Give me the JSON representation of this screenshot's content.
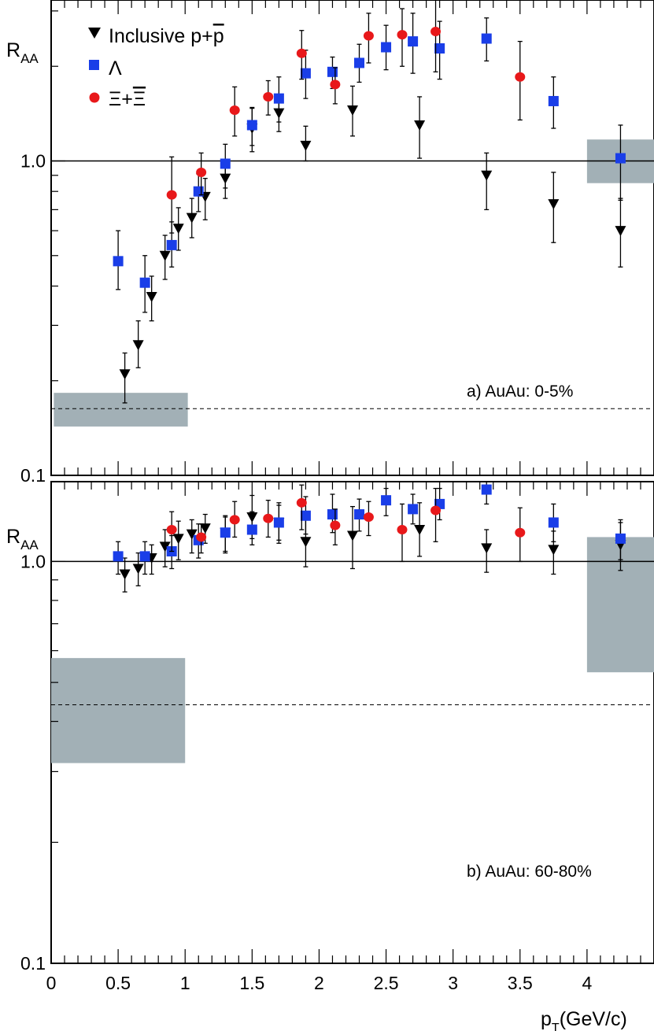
{
  "chart_data": {
    "type": "scatter",
    "xlabel_p": "p",
    "xlabel_sub": "T",
    "xlabel_rest": "(GeV/c)",
    "xlim": [
      0,
      4.5
    ],
    "xticks": [
      "0",
      "0.5",
      "1",
      "1.5",
      "2",
      "2.5",
      "3",
      "3.5",
      "4"
    ],
    "ylabel_main": "R",
    "ylabel_sub": "AA",
    "yscale": "log",
    "colors": {
      "inclusive": "#000000",
      "lambda": "#1a3ee8",
      "xi": "#e8181a",
      "band": "#a2b0b6"
    },
    "legend": [
      {
        "label": "Inclusive p+",
        "label_bar": "p",
        "marker": "triangle-down",
        "color": "#000000"
      },
      {
        "label": "Λ",
        "marker": "square",
        "color": "#1a3ee8"
      },
      {
        "label": "Ξ+",
        "label_bar": "Ξ",
        "marker": "circle",
        "color": "#e8181a"
      }
    ],
    "panels": [
      {
        "label": "a) AuAu: 0-5%",
        "ylim": [
          0.1,
          3.25
        ],
        "yticks": [
          "0.1",
          "1.0"
        ],
        "reference_line": 1.0,
        "dashed_line": 0.163,
        "band_low": {
          "x": [
            0.02,
            1.02
          ],
          "y": [
            0.143,
            0.183
          ]
        },
        "band_high": {
          "x": [
            4.0,
            4.5
          ],
          "y": [
            0.85,
            1.17
          ]
        },
        "series": [
          {
            "marker": "triangle-down",
            "points": [
              {
                "x": 0.55,
                "y": 0.21,
                "lo": 0.17,
                "hi": 0.245
              },
              {
                "x": 0.65,
                "y": 0.26,
                "lo": 0.22,
                "hi": 0.31
              },
              {
                "x": 0.75,
                "y": 0.37,
                "lo": 0.31,
                "hi": 0.43
              },
              {
                "x": 0.85,
                "y": 0.5,
                "lo": 0.42,
                "hi": 0.58
              },
              {
                "x": 0.95,
                "y": 0.61,
                "lo": 0.52,
                "hi": 0.71
              },
              {
                "x": 1.05,
                "y": 0.66,
                "lo": 0.57,
                "hi": 0.76
              },
              {
                "x": 1.15,
                "y": 0.77,
                "lo": 0.65,
                "hi": 0.88
              },
              {
                "x": 1.3,
                "y": 0.88,
                "lo": 0.76,
                "hi": 1.0
              },
              {
                "x": 1.5,
                "y": 1.27,
                "lo": 1.07,
                "hi": 1.47
              },
              {
                "x": 1.7,
                "y": 1.42,
                "lo": 1.24,
                "hi": 1.6
              },
              {
                "x": 1.9,
                "y": 1.12,
                "lo": 1.0,
                "hi": 1.29
              },
              {
                "x": 2.25,
                "y": 1.45,
                "lo": 1.2,
                "hi": 1.73
              },
              {
                "x": 2.75,
                "y": 1.3,
                "lo": 1.02,
                "hi": 1.6
              },
              {
                "x": 3.25,
                "y": 0.9,
                "lo": 0.7,
                "hi": 1.06
              },
              {
                "x": 3.75,
                "y": 0.73,
                "lo": 0.55,
                "hi": 0.92
              },
              {
                "x": 4.25,
                "y": 0.6,
                "lo": 0.46,
                "hi": 0.76
              }
            ]
          },
          {
            "marker": "square",
            "points": [
              {
                "x": 0.5,
                "y": 0.48,
                "lo": 0.39,
                "hi": 0.6
              },
              {
                "x": 0.7,
                "y": 0.41,
                "lo": 0.33,
                "hi": 0.5
              },
              {
                "x": 0.9,
                "y": 0.54,
                "lo": 0.46,
                "hi": 0.64
              },
              {
                "x": 1.1,
                "y": 0.8,
                "lo": 0.69,
                "hi": 0.91
              },
              {
                "x": 1.3,
                "y": 0.98,
                "lo": 0.82,
                "hi": 1.13
              },
              {
                "x": 1.5,
                "y": 1.3,
                "lo": 1.12,
                "hi": 1.48
              },
              {
                "x": 1.7,
                "y": 1.58,
                "lo": 1.33,
                "hi": 1.85
              },
              {
                "x": 1.9,
                "y": 1.9,
                "lo": 1.58,
                "hi": 2.25
              },
              {
                "x": 2.1,
                "y": 1.92,
                "lo": 1.7,
                "hi": 2.14
              },
              {
                "x": 2.3,
                "y": 2.05,
                "lo": 1.78,
                "hi": 2.35
              },
              {
                "x": 2.5,
                "y": 2.3,
                "lo": 1.95,
                "hi": 2.7
              },
              {
                "x": 2.7,
                "y": 2.4,
                "lo": 1.9,
                "hi": 2.95
              },
              {
                "x": 2.9,
                "y": 2.28,
                "lo": 1.82,
                "hi": 2.78
              },
              {
                "x": 3.25,
                "y": 2.45,
                "lo": 2.08,
                "hi": 2.85
              },
              {
                "x": 3.75,
                "y": 1.55,
                "lo": 1.27,
                "hi": 1.85
              },
              {
                "x": 4.25,
                "y": 1.02,
                "lo": 0.75,
                "hi": 1.3
              }
            ]
          },
          {
            "marker": "circle",
            "points": [
              {
                "x": 0.9,
                "y": 0.78,
                "lo": 0.59,
                "hi": 1.03
              },
              {
                "x": 1.12,
                "y": 0.92,
                "lo": 0.78,
                "hi": 1.06
              },
              {
                "x": 1.37,
                "y": 1.45,
                "lo": 1.2,
                "hi": 1.72
              },
              {
                "x": 1.62,
                "y": 1.6,
                "lo": 1.4,
                "hi": 1.8
              },
              {
                "x": 1.87,
                "y": 2.2,
                "lo": 1.82,
                "hi": 2.6
              },
              {
                "x": 2.12,
                "y": 1.75,
                "lo": 1.52,
                "hi": 1.98
              },
              {
                "x": 2.37,
                "y": 2.5,
                "lo": 2.05,
                "hi": 2.95
              },
              {
                "x": 2.62,
                "y": 2.52,
                "lo": 2.0,
                "hi": 3.05
              },
              {
                "x": 2.87,
                "y": 2.58,
                "lo": 1.92,
                "hi": 3.3
              },
              {
                "x": 3.5,
                "y": 1.85,
                "lo": 1.35,
                "hi": 2.4
              }
            ]
          }
        ]
      },
      {
        "label": "b) AuAu: 60-80%",
        "ylim": [
          0.1,
          1.58
        ],
        "yticks": [
          "0.1",
          "1.0"
        ],
        "reference_line": 1.0,
        "dashed_line": 0.44,
        "band_low": {
          "x": [
            0.0,
            1.0
          ],
          "y": [
            0.315,
            0.575
          ]
        },
        "band_high": {
          "x": [
            4.0,
            4.5
          ],
          "y": [
            0.53,
            1.15
          ]
        },
        "series": [
          {
            "marker": "triangle-down",
            "points": [
              {
                "x": 0.55,
                "y": 0.93,
                "lo": 0.84,
                "hi": 1.02
              },
              {
                "x": 0.65,
                "y": 0.96,
                "lo": 0.87,
                "hi": 1.05
              },
              {
                "x": 0.75,
                "y": 1.02,
                "lo": 0.93,
                "hi": 1.1
              },
              {
                "x": 0.85,
                "y": 1.09,
                "lo": 0.97,
                "hi": 1.2
              },
              {
                "x": 0.95,
                "y": 1.14,
                "lo": 1.01,
                "hi": 1.26
              },
              {
                "x": 1.05,
                "y": 1.17,
                "lo": 1.05,
                "hi": 1.27
              },
              {
                "x": 1.15,
                "y": 1.21,
                "lo": 1.11,
                "hi": 1.31
              },
              {
                "x": 1.3,
                "y": 1.18,
                "lo": 1.06,
                "hi": 1.29
              },
              {
                "x": 1.5,
                "y": 1.29,
                "lo": 1.14,
                "hi": 1.46
              },
              {
                "x": 1.7,
                "y": 1.25,
                "lo": 1.11,
                "hi": 1.4
              },
              {
                "x": 1.9,
                "y": 1.12,
                "lo": 0.97,
                "hi": 1.27
              },
              {
                "x": 2.25,
                "y": 1.16,
                "lo": 0.96,
                "hi": 1.37
              },
              {
                "x": 2.75,
                "y": 1.2,
                "lo": 1.03,
                "hi": 1.4
              },
              {
                "x": 3.25,
                "y": 1.08,
                "lo": 0.94,
                "hi": 1.2
              },
              {
                "x": 3.75,
                "y": 1.07,
                "lo": 0.93,
                "hi": 1.19
              },
              {
                "x": 4.25,
                "y": 1.1,
                "lo": 0.95,
                "hi": 1.27
              }
            ]
          },
          {
            "marker": "square",
            "points": [
              {
                "x": 0.5,
                "y": 1.03,
                "lo": 0.93,
                "hi": 1.12
              },
              {
                "x": 0.7,
                "y": 1.03,
                "lo": 0.93,
                "hi": 1.12
              },
              {
                "x": 0.9,
                "y": 1.06,
                "lo": 0.96,
                "hi": 1.16
              },
              {
                "x": 1.1,
                "y": 1.13,
                "lo": 1.02,
                "hi": 1.24
              },
              {
                "x": 1.3,
                "y": 1.18,
                "lo": 1.05,
                "hi": 1.3
              },
              {
                "x": 1.5,
                "y": 1.2,
                "lo": 1.1,
                "hi": 1.33
              },
              {
                "x": 1.7,
                "y": 1.25,
                "lo": 1.13,
                "hi": 1.38
              },
              {
                "x": 1.9,
                "y": 1.3,
                "lo": 1.17,
                "hi": 1.45
              },
              {
                "x": 2.1,
                "y": 1.31,
                "lo": 1.18,
                "hi": 1.47
              },
              {
                "x": 2.3,
                "y": 1.31,
                "lo": 1.19,
                "hi": 1.43
              },
              {
                "x": 2.5,
                "y": 1.42,
                "lo": 1.3,
                "hi": 1.52
              },
              {
                "x": 2.7,
                "y": 1.35,
                "lo": 1.24,
                "hi": 1.47
              },
              {
                "x": 2.9,
                "y": 1.39,
                "lo": 1.27,
                "hi": 1.52
              },
              {
                "x": 3.25,
                "y": 1.51,
                "lo": 1.39,
                "hi": 1.58
              },
              {
                "x": 3.75,
                "y": 1.25,
                "lo": 1.12,
                "hi": 1.39
              },
              {
                "x": 4.25,
                "y": 1.14,
                "lo": 1.01,
                "hi": 1.25
              }
            ]
          },
          {
            "marker": "circle",
            "points": [
              {
                "x": 0.9,
                "y": 1.2,
                "lo": 1.06,
                "hi": 1.33
              },
              {
                "x": 1.12,
                "y": 1.15,
                "lo": 1.05,
                "hi": 1.24
              },
              {
                "x": 1.37,
                "y": 1.27,
                "lo": 1.15,
                "hi": 1.41
              },
              {
                "x": 1.62,
                "y": 1.28,
                "lo": 1.15,
                "hi": 1.42
              },
              {
                "x": 1.87,
                "y": 1.4,
                "lo": 1.2,
                "hi": 1.55
              },
              {
                "x": 2.12,
                "y": 1.23,
                "lo": 1.1,
                "hi": 1.35
              },
              {
                "x": 2.37,
                "y": 1.29,
                "lo": 1.16,
                "hi": 1.41
              },
              {
                "x": 2.62,
                "y": 1.2,
                "lo": 1.0,
                "hi": 1.39
              },
              {
                "x": 2.87,
                "y": 1.34,
                "lo": 1.12,
                "hi": 1.52
              },
              {
                "x": 3.5,
                "y": 1.18,
                "lo": 1.0,
                "hi": 1.36
              }
            ]
          }
        ]
      }
    ]
  }
}
